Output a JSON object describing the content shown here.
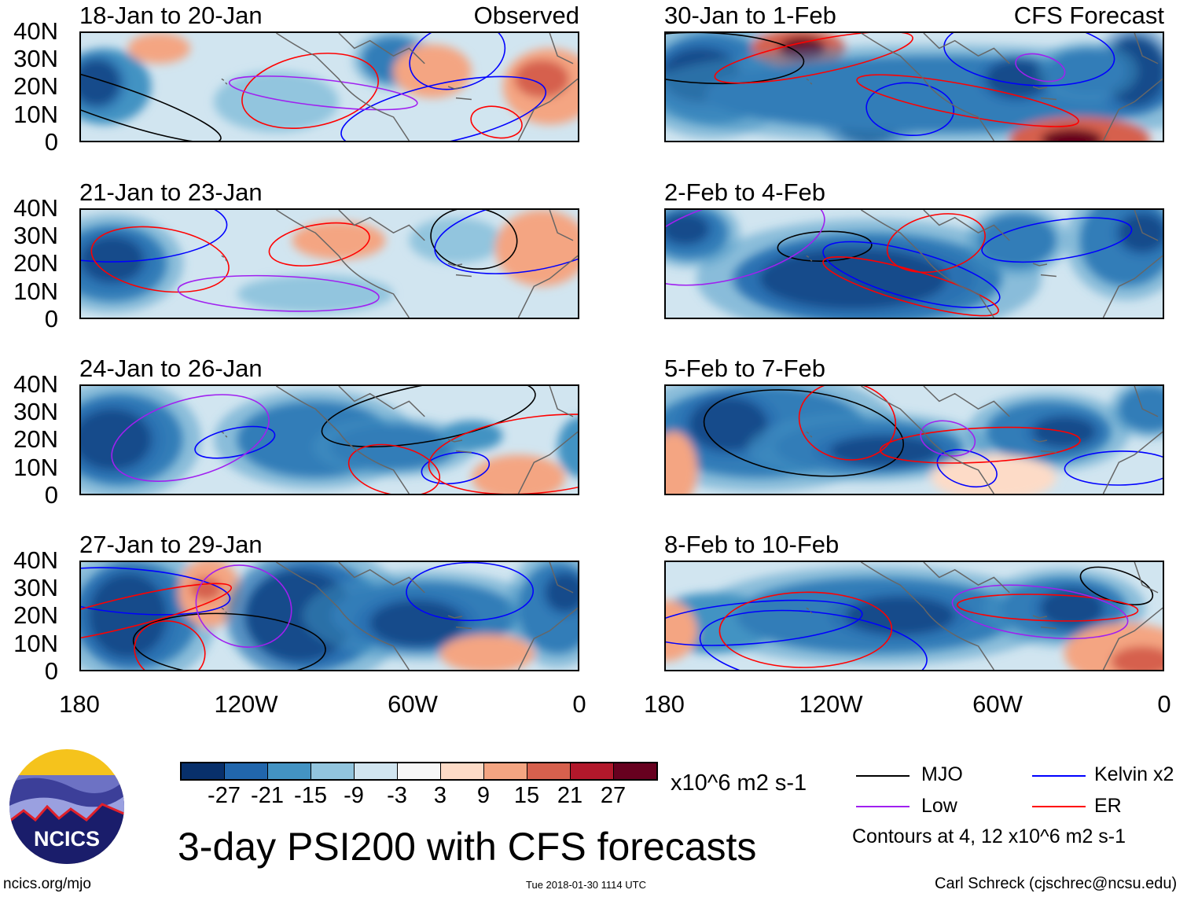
{
  "panels": [
    {
      "title": "18-Jan to 20-Jan",
      "tag": "Observed"
    },
    {
      "title": "30-Jan to 1-Feb",
      "tag": "CFS Forecast"
    },
    {
      "title": "21-Jan to 23-Jan"
    },
    {
      "title": "2-Feb to 4-Feb"
    },
    {
      "title": "24-Jan to 26-Jan"
    },
    {
      "title": "5-Feb to 7-Feb"
    },
    {
      "title": "27-Jan to 29-Jan"
    },
    {
      "title": "8-Feb to 10-Feb"
    }
  ],
  "y_ticks": [
    "40N",
    "30N",
    "20N",
    "10N",
    "0"
  ],
  "x_ticks": [
    "180",
    "120W",
    "60W",
    "0"
  ],
  "colorbar": {
    "colors": [
      "#08306b",
      "#2166ac",
      "#4393c3",
      "#92c5de",
      "#d1e5f0",
      "#f7f7f7",
      "#fddbc7",
      "#f4a582",
      "#d6604d",
      "#b2182b",
      "#67001f"
    ],
    "labels": [
      "-27",
      "-21",
      "-15",
      "-9",
      "-3",
      "3",
      "9",
      "15",
      "21",
      "27"
    ],
    "units": "x10^6 m2 s-1"
  },
  "legend": {
    "items": [
      {
        "label": "MJO",
        "color": "#000000"
      },
      {
        "label": "Kelvin x2",
        "color": "#0000ff"
      },
      {
        "label": "Low",
        "color": "#a020f0"
      },
      {
        "label": "ER",
        "color": "#ff0000"
      }
    ],
    "note": "Contours at 4, 12 x10^6 m2 s-1"
  },
  "title": "3-day PSI200 with CFS forecasts",
  "logo_text": "NCICS",
  "footer": {
    "url": "ncics.org/mjo",
    "timestamp": "Tue 2018-01-30 1114 UTC",
    "credit": "Carl Schreck (cjschrec@ncsu.edu)"
  }
}
